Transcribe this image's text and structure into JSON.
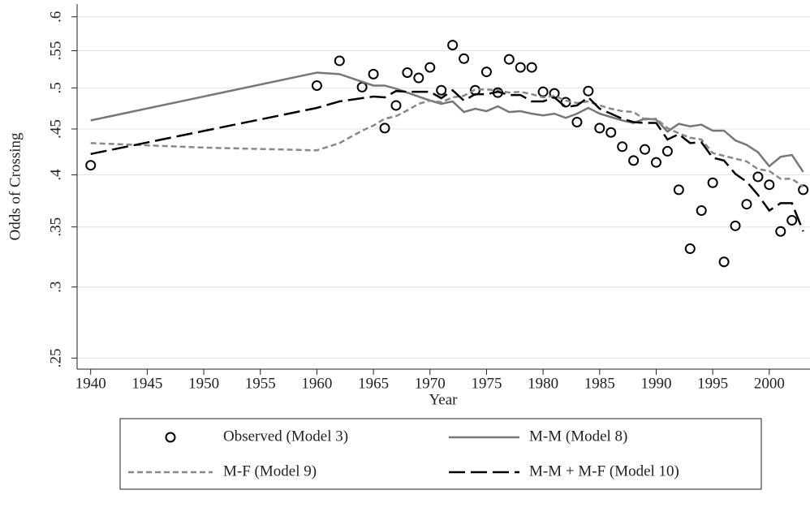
{
  "chart_data": {
    "type": "line",
    "x_label": "Year",
    "y_label": "Odds of Crossing",
    "y_scale": "log",
    "grid": true,
    "xlim": [
      1938.8,
      2003.6
    ],
    "ylim": [
      0.243,
      0.62
    ],
    "xticks": [
      1940,
      1945,
      1950,
      1955,
      1960,
      1965,
      1970,
      1975,
      1980,
      1985,
      1990,
      1995,
      2000
    ],
    "yticks": [
      {
        "value": 0.25,
        "label": ".25"
      },
      {
        "value": 0.3,
        "label": ".3"
      },
      {
        "value": 0.35,
        "label": ".35"
      },
      {
        "value": 0.4,
        "label": ".4"
      },
      {
        "value": 0.45,
        "label": ".45"
      },
      {
        "value": 0.5,
        "label": ".5"
      },
      {
        "value": 0.55,
        "label": ".55"
      },
      {
        "value": 0.6,
        "label": ".6"
      }
    ],
    "legend_position": "bottom",
    "series": [
      {
        "name": "Observed (Model 3)",
        "color": "#000000",
        "style": "markers",
        "x": [
          1940,
          1960,
          1962,
          1964,
          1965,
          1966,
          1967,
          1968,
          1969,
          1970,
          1971,
          1972,
          1973,
          1974,
          1975,
          1976,
          1977,
          1978,
          1979,
          1980,
          1981,
          1982,
          1983,
          1984,
          1985,
          1986,
          1987,
          1988,
          1989,
          1990,
          1991,
          1992,
          1993,
          1994,
          1995,
          1996,
          1997,
          1998,
          1999,
          2000,
          2001,
          2002,
          2003
        ],
        "values": [
          0.41,
          0.503,
          0.536,
          0.501,
          0.518,
          0.451,
          0.478,
          0.52,
          0.513,
          0.527,
          0.497,
          0.558,
          0.539,
          0.497,
          0.521,
          0.494,
          0.538,
          0.527,
          0.527,
          0.495,
          0.493,
          0.482,
          0.458,
          0.496,
          0.451,
          0.446,
          0.43,
          0.415,
          0.427,
          0.413,
          0.425,
          0.385,
          0.331,
          0.365,
          0.392,
          0.32,
          0.351,
          0.371,
          0.398,
          0.39,
          0.346,
          0.356,
          0.385
        ]
      },
      {
        "name": "M-M (Model 8)",
        "color": "#777777",
        "style": "solid",
        "x": [
          1940,
          1960,
          1962,
          1965,
          1966,
          1967,
          1968,
          1969,
          1970,
          1971,
          1972,
          1973,
          1974,
          1975,
          1976,
          1977,
          1978,
          1979,
          1980,
          1981,
          1982,
          1983,
          1984,
          1985,
          1986,
          1987,
          1988,
          1989,
          1990,
          1991,
          1992,
          1993,
          1994,
          1995,
          1996,
          1997,
          1998,
          1999,
          2000,
          2001,
          2002,
          2003
        ],
        "values": [
          0.46,
          0.52,
          0.518,
          0.503,
          0.503,
          0.499,
          0.494,
          0.489,
          0.484,
          0.48,
          0.483,
          0.47,
          0.474,
          0.471,
          0.477,
          0.47,
          0.471,
          0.468,
          0.466,
          0.468,
          0.463,
          0.468,
          0.475,
          0.468,
          0.464,
          0.46,
          0.457,
          0.462,
          0.461,
          0.447,
          0.456,
          0.453,
          0.455,
          0.448,
          0.448,
          0.437,
          0.432,
          0.424,
          0.409,
          0.419,
          0.421,
          0.403
        ]
      },
      {
        "name": "M-F (Model 9)",
        "color": "#888888",
        "style": "dash",
        "x": [
          1940,
          1950,
          1960,
          1962,
          1964,
          1965,
          1966,
          1967,
          1968,
          1969,
          1970,
          1971,
          1972,
          1973,
          1974,
          1975,
          1976,
          1977,
          1978,
          1979,
          1980,
          1981,
          1982,
          1983,
          1984,
          1985,
          1986,
          1987,
          1988,
          1989,
          1990,
          1991,
          1992,
          1993,
          1994,
          1995,
          1996,
          1997,
          1998,
          1999,
          2000,
          2001,
          2002,
          2003
        ],
        "values": [
          0.434,
          0.429,
          0.426,
          0.434,
          0.448,
          0.454,
          0.462,
          0.465,
          0.472,
          0.48,
          0.484,
          0.482,
          0.488,
          0.49,
          0.498,
          0.498,
          0.497,
          0.494,
          0.495,
          0.492,
          0.488,
          0.49,
          0.484,
          0.481,
          0.483,
          0.478,
          0.474,
          0.471,
          0.47,
          0.461,
          0.462,
          0.451,
          0.445,
          0.44,
          0.438,
          0.423,
          0.42,
          0.417,
          0.414,
          0.406,
          0.404,
          0.396,
          0.396,
          0.388
        ]
      },
      {
        "name": "M-M + M-F (Model 10)",
        "color": "#000000",
        "style": "longdash",
        "x": [
          1940,
          1960,
          1962,
          1965,
          1966,
          1967,
          1968,
          1969,
          1970,
          1971,
          1972,
          1973,
          1974,
          1975,
          1976,
          1977,
          1978,
          1979,
          1980,
          1981,
          1982,
          1983,
          1984,
          1985,
          1986,
          1987,
          1988,
          1989,
          1990,
          1991,
          1992,
          1993,
          1994,
          1995,
          1996,
          1997,
          1998,
          1999,
          2000,
          2001,
          2002,
          2003
        ],
        "values": [
          0.422,
          0.475,
          0.483,
          0.489,
          0.488,
          0.496,
          0.495,
          0.495,
          0.495,
          0.487,
          0.497,
          0.484,
          0.492,
          0.492,
          0.495,
          0.491,
          0.491,
          0.483,
          0.483,
          0.488,
          0.476,
          0.478,
          0.488,
          0.474,
          0.468,
          0.462,
          0.458,
          0.457,
          0.457,
          0.438,
          0.444,
          0.434,
          0.435,
          0.418,
          0.415,
          0.401,
          0.393,
          0.38,
          0.365,
          0.372,
          0.372,
          0.346
        ]
      }
    ]
  }
}
